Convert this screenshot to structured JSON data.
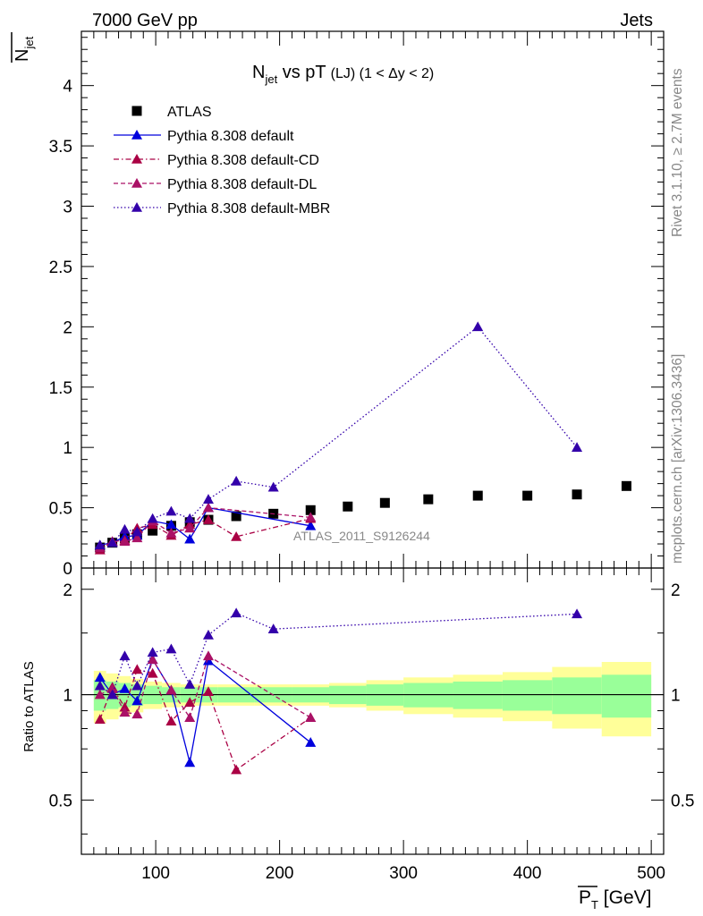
{
  "header": {
    "left": "7000 GeV pp",
    "right": "Jets"
  },
  "side_text": {
    "rivet": "Rivet 3.1.10, ≥ 2.7M events",
    "mcplots": "mcplots.cern.ch [arXiv:1306.3436]"
  },
  "colors": {
    "atlas": "#000000",
    "default": "#0000dd",
    "cd": "#aa0044",
    "dl": "#aa1166",
    "mbr": "#3300aa",
    "band_inner": "#99ff99",
    "band_outer": "#ffff99"
  },
  "chart_data": [
    {
      "type": "scatter",
      "title": "N_jet vs pT (LJ) (1 < Δy < 2)",
      "title_main": "N",
      "title_sub": "jet",
      "title_rest": " vs pT",
      "title_small": "(LJ) (1 < Δy < 2)",
      "ylabel_top": "N",
      "ylabel_sub": "jet",
      "xlabel": "P",
      "xlabel_sub": "T",
      "xlabel_unit": " [GeV]",
      "xlim": [
        40,
        510
      ],
      "ylim": [
        0,
        4.45
      ],
      "yticks": [
        "0",
        "0.5",
        "1",
        "1.5",
        "2",
        "2.5",
        "3",
        "3.5",
        "4"
      ],
      "xticks": [
        "100",
        "200",
        "300",
        "400",
        "500"
      ],
      "watermark": "ATLAS_2011_S9126244",
      "legend_position": "top-left",
      "series": [
        {
          "name": "ATLAS",
          "style": "marker",
          "x": [
            55,
            65,
            75,
            85,
            97.5,
            112.5,
            127.5,
            142.5,
            165,
            195,
            225,
            255,
            285,
            320,
            360,
            400,
            440,
            480
          ],
          "y": [
            0.17,
            0.21,
            0.25,
            0.28,
            0.31,
            0.35,
            0.38,
            0.4,
            0.43,
            0.45,
            0.48,
            0.51,
            0.54,
            0.57,
            0.6,
            0.6,
            0.61,
            0.68
          ]
        },
        {
          "name": "Pythia 8.308 default",
          "style": "solid",
          "x": [
            55,
            65,
            75,
            85,
            97.5,
            112.5,
            127.5,
            142.5,
            225
          ],
          "y": [
            0.19,
            0.21,
            0.26,
            0.27,
            0.39,
            0.36,
            0.24,
            0.5,
            0.35
          ]
        },
        {
          "name": "Pythia 8.308 default-CD",
          "style": "dashdot",
          "x": [
            55,
            65,
            75,
            85,
            97.5,
            112.5,
            127.5,
            142.5,
            165,
            225
          ],
          "y": [
            0.15,
            0.22,
            0.23,
            0.33,
            0.36,
            0.27,
            0.36,
            0.4,
            0.26,
            0.41
          ]
        },
        {
          "name": "Pythia 8.308 default-DL",
          "style": "dashed",
          "x": [
            55,
            65,
            75,
            85,
            97.5,
            112.5,
            127.5,
            142.5,
            225
          ],
          "y": [
            0.17,
            0.22,
            0.22,
            0.25,
            0.39,
            0.29,
            0.33,
            0.5,
            0.42
          ]
        },
        {
          "name": "Pythia 8.308 default-MBR",
          "style": "dotted",
          "x": [
            55,
            65,
            75,
            85,
            97.5,
            112.5,
            127.5,
            142.5,
            165,
            195,
            360,
            440
          ],
          "y": [
            0.19,
            0.21,
            0.32,
            0.3,
            0.41,
            0.47,
            0.41,
            0.57,
            0.72,
            0.67,
            2.0,
            1.0
          ]
        }
      ]
    },
    {
      "type": "scatter",
      "ylabel": "Ratio to ATLAS",
      "xlim": [
        40,
        510
      ],
      "ylim": [
        0.35,
        2.3
      ],
      "yticks": [
        "0.5",
        "1",
        "2"
      ],
      "reference_line": 1,
      "band_x_edges": [
        50,
        60,
        70,
        80,
        90,
        105,
        120,
        135,
        150,
        180,
        210,
        240,
        270,
        300,
        340,
        380,
        420,
        460,
        500
      ],
      "band_inner": [
        0.1,
        0.09,
        0.08,
        0.07,
        0.06,
        0.05,
        0.05,
        0.05,
        0.05,
        0.05,
        0.05,
        0.06,
        0.07,
        0.08,
        0.09,
        0.1,
        0.12,
        0.14
      ],
      "band_outer": [
        0.17,
        0.15,
        0.13,
        0.11,
        0.09,
        0.08,
        0.07,
        0.07,
        0.07,
        0.07,
        0.07,
        0.08,
        0.1,
        0.12,
        0.14,
        0.16,
        0.2,
        0.24
      ],
      "series": [
        {
          "name": "Pythia 8.308 default",
          "x": [
            55,
            65,
            75,
            85,
            97.5,
            112.5,
            127.5,
            142.5,
            225
          ],
          "y": [
            1.12,
            1.0,
            1.04,
            0.96,
            1.26,
            1.03,
            0.64,
            1.25,
            0.73
          ]
        },
        {
          "name": "Pythia 8.308 default-CD",
          "x": [
            55,
            65,
            75,
            85,
            97.5,
            112.5,
            127.5,
            142.5,
            165,
            225
          ],
          "y": [
            0.85,
            1.05,
            0.92,
            1.18,
            1.15,
            0.84,
            0.95,
            1.02,
            0.61,
            0.86
          ]
        },
        {
          "name": "Pythia 8.308 default-DL",
          "x": [
            55,
            65,
            75,
            85,
            97.5,
            112.5,
            127.5,
            142.5,
            225
          ],
          "y": [
            1.0,
            1.04,
            0.89,
            0.88,
            1.26,
            1.03,
            0.86,
            1.29,
            0.86
          ]
        },
        {
          "name": "Pythia 8.308 default-MBR",
          "x": [
            55,
            65,
            75,
            85,
            97.5,
            112.5,
            127.5,
            142.5,
            165,
            195,
            440
          ],
          "y": [
            1.06,
            1.0,
            1.29,
            1.06,
            1.32,
            1.35,
            1.07,
            1.48,
            1.71,
            1.54,
            1.7
          ]
        }
      ]
    }
  ]
}
